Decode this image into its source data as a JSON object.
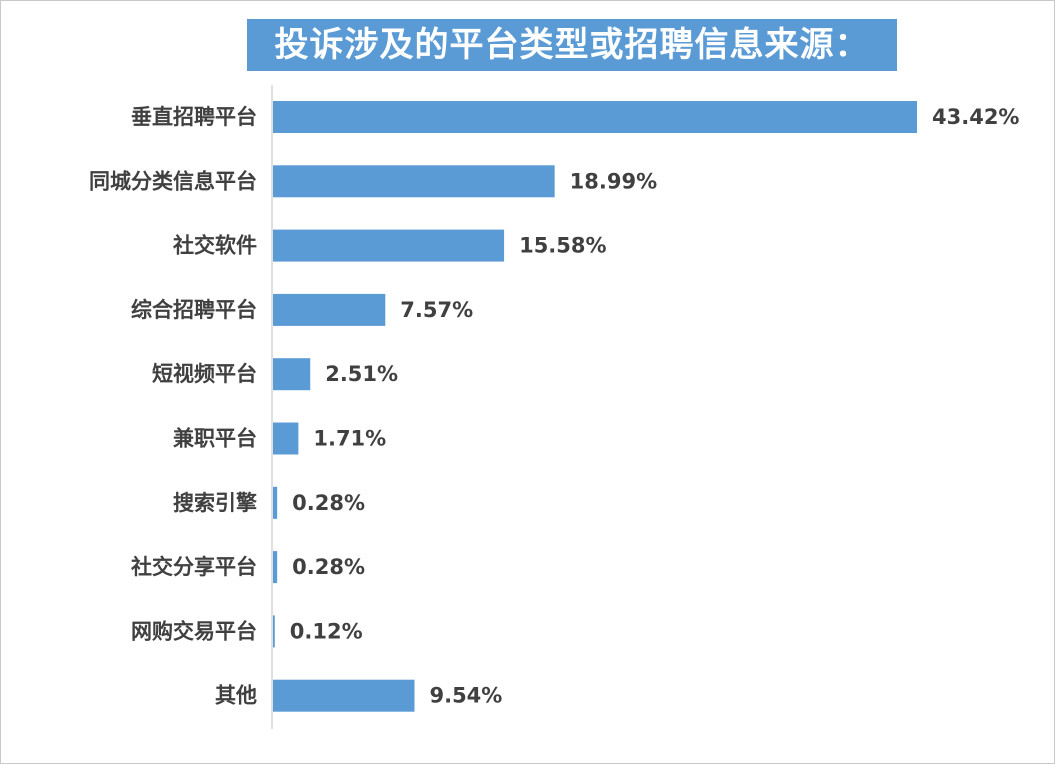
{
  "title": "投诉涉及的平台类型或招聘信息来源：",
  "colors": {
    "bar": "#5b9bd5",
    "title_bg": "#5b9bd5",
    "text": "#404040",
    "axis": "#bfbfbf"
  },
  "chart_data": {
    "type": "bar",
    "orientation": "horizontal",
    "title": "投诉涉及的平台类型或招聘信息来源：",
    "unit": "%",
    "categories": [
      "垂直招聘平台",
      "同城分类信息平台",
      "社交软件",
      "综合招聘平台",
      "短视频平台",
      "兼职平台",
      "搜索引擎",
      "社交分享平台",
      "网购交易平台",
      "其他"
    ],
    "values": [
      43.42,
      18.99,
      15.58,
      7.57,
      2.51,
      1.71,
      0.28,
      0.28,
      0.12,
      9.54
    ],
    "value_labels": [
      "43.42%",
      "18.99%",
      "15.58%",
      "7.57%",
      "2.51%",
      "1.71%",
      "0.28%",
      "0.28%",
      "0.12%",
      "9.54%"
    ],
    "xlim": [
      0,
      43.42
    ],
    "grid": false,
    "legend": "none"
  }
}
